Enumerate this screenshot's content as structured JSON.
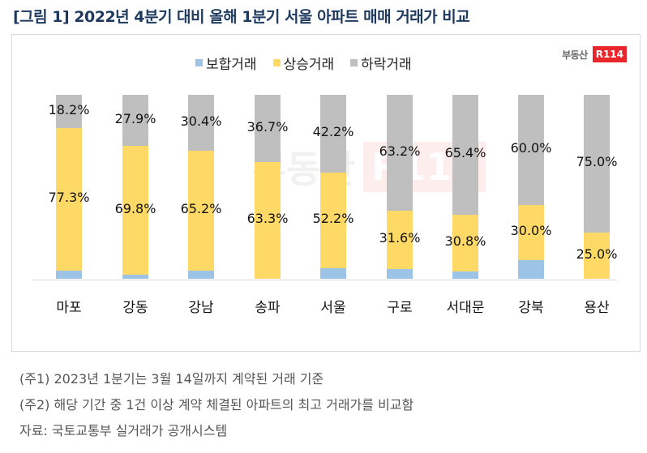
{
  "title": "[그림 1] 2022년 4분기 대비 올해 1분기 서울 아파트 매매 거래가 비교",
  "logo": {
    "text": "부동산",
    "badge": "R114"
  },
  "legend": [
    {
      "label": "보합거래",
      "color": "#9dc3e6"
    },
    {
      "label": "상승거래",
      "color": "#ffd966"
    },
    {
      "label": "하락거래",
      "color": "#bfbfbf"
    }
  ],
  "notes": {
    "note1": "(주1) 2023년 1분기는 3월 14일까지 계약된 거래 기준",
    "note2": "(주2) 해당 기간 중 1건 이상 계약 체결된 아파트의 최고 거래가를 비교함",
    "source": "자료: 국토교통부 실거래가 공개시스템"
  },
  "chart_data": {
    "type": "bar",
    "stacked": true,
    "percent_stacked": true,
    "title": "2022년 4분기 대비 올해 1분기 서울 아파트 매매 거래가 비교",
    "xlabel": "",
    "ylabel": "",
    "ylim": [
      0,
      100
    ],
    "grid": false,
    "legend_position": "top",
    "categories": [
      "마포",
      "강동",
      "강남",
      "송파",
      "서울",
      "구로",
      "서대문",
      "강북",
      "용산"
    ],
    "series": [
      {
        "name": "보합거래",
        "color": "#9dc3e6",
        "values": [
          4.5,
          2.3,
          4.4,
          0.0,
          5.6,
          5.2,
          3.8,
          10.0,
          0.0
        ],
        "labeled": false
      },
      {
        "name": "상승거래",
        "color": "#ffd966",
        "values": [
          77.3,
          69.8,
          65.2,
          63.3,
          52.2,
          31.6,
          30.8,
          30.0,
          25.0
        ],
        "labeled": true
      },
      {
        "name": "하락거래",
        "color": "#bfbfbf",
        "values": [
          18.2,
          27.9,
          30.4,
          36.7,
          42.2,
          63.2,
          65.4,
          60.0,
          75.0
        ],
        "labeled": true
      }
    ],
    "labels": {
      "상승거래": [
        "77.3%",
        "69.8%",
        "65.2%",
        "63.3%",
        "52.2%",
        "31.6%",
        "30.8%",
        "30.0%",
        "25.0%"
      ],
      "하락거래": [
        "18.2%",
        "27.9%",
        "30.4%",
        "36.7%",
        "42.2%",
        "63.2%",
        "65.4%",
        "60.0%",
        "75.0%"
      ]
    }
  }
}
